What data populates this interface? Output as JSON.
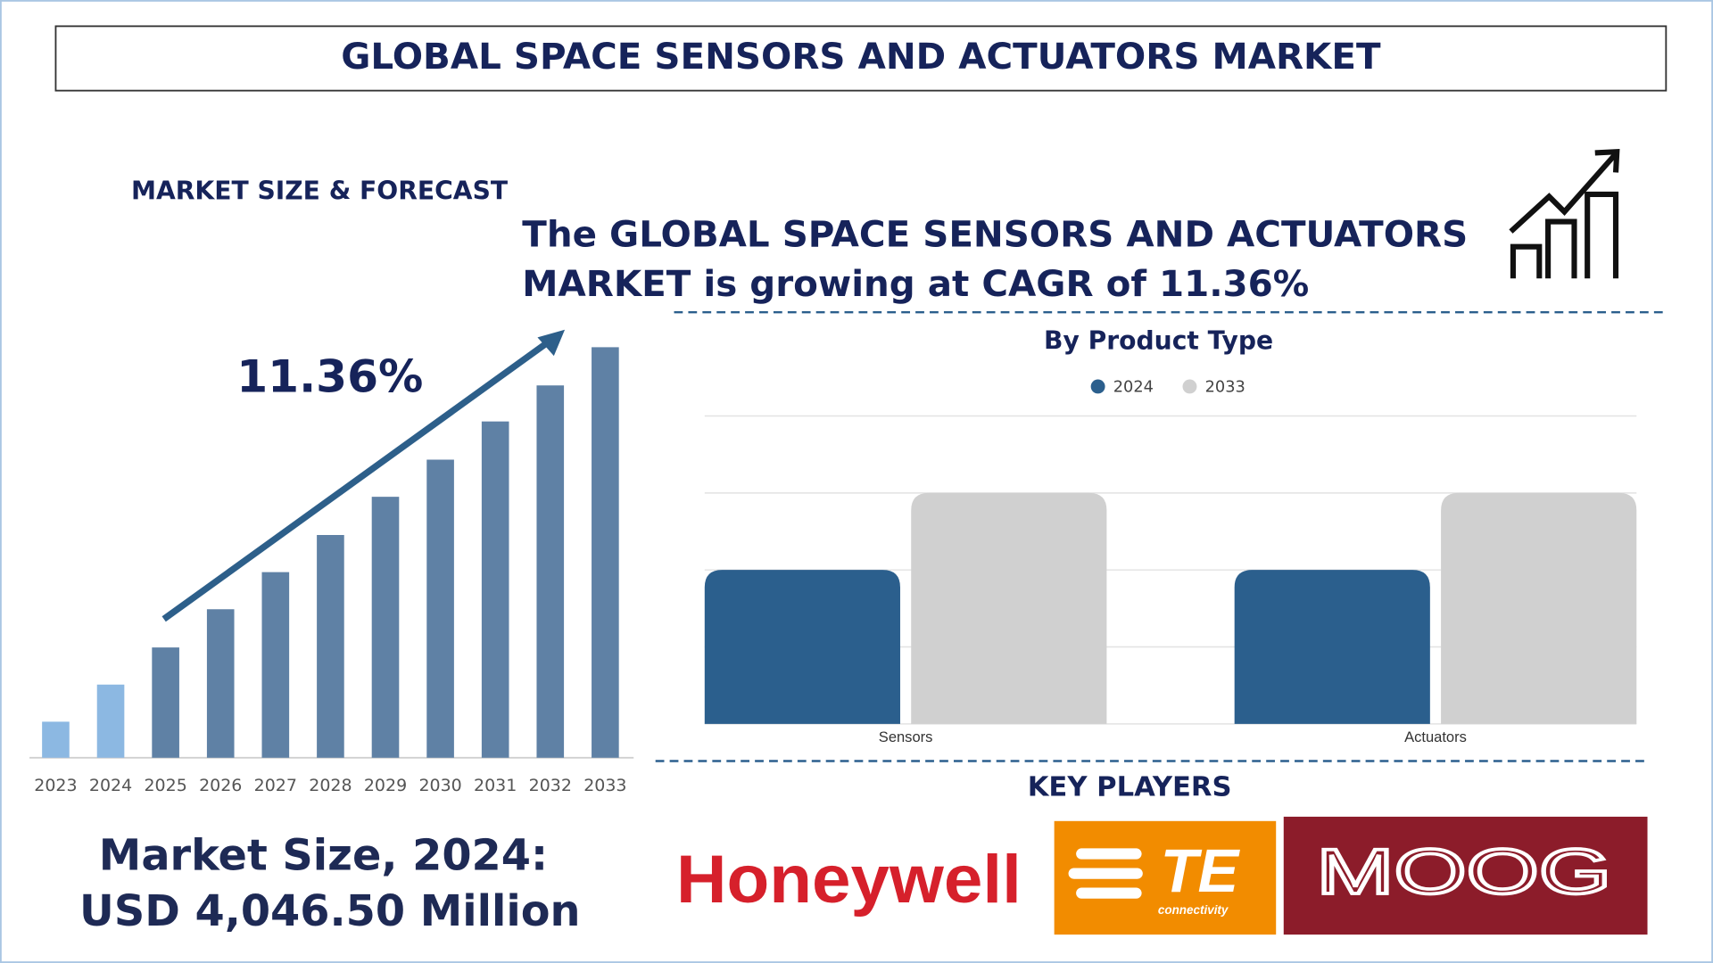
{
  "header": {
    "title": "GLOBAL SPACE SENSORS AND ACTUATORS MARKET"
  },
  "section_label": "MARKET SIZE & FORECAST",
  "headline": [
    "The GLOBAL SPACE SENSORS AND ACTUATORS",
    "MARKET is growing at CAGR of 11.36%"
  ],
  "market_size": [
    "Market Size, 2024:",
    "USD 4,046.50 Million"
  ],
  "chart_data": [
    {
      "type": "bar",
      "categories": [
        "2023",
        "2024",
        "2025",
        "2026",
        "2027",
        "2028",
        "2029",
        "2030",
        "2031",
        "2032",
        "2033"
      ],
      "values": [
        33,
        67,
        101,
        136,
        170,
        204,
        239,
        273,
        308,
        341,
        376
      ],
      "colors": [
        "#8cb8e2",
        "#8cb8e2",
        "#5f81a5",
        "#5f81a5",
        "#5f81a5",
        "#5f81a5",
        "#5f81a5",
        "#5f81a5",
        "#5f81a5",
        "#5f81a5",
        "#5f81a5"
      ],
      "annotation": "11.36%"
    },
    {
      "type": "grouped_bar",
      "title": "By Product Type",
      "categories": [
        "Sensors",
        "Actuators"
      ],
      "series": [
        {
          "name": "2024",
          "color": "#2b5f8d",
          "values": [
            2,
            2
          ]
        },
        {
          "name": "2033",
          "color": "#d0d0d0",
          "values": [
            3,
            3
          ]
        }
      ],
      "ylim": [
        0,
        4
      ],
      "gridlines": [
        0,
        1,
        2,
        3,
        4
      ],
      "grid": true,
      "legend": "top"
    }
  ],
  "key_players": {
    "title": "KEY PLAYERS",
    "logos": [
      "Honeywell",
      "TE",
      "connectivity",
      "MOOG"
    ]
  }
}
